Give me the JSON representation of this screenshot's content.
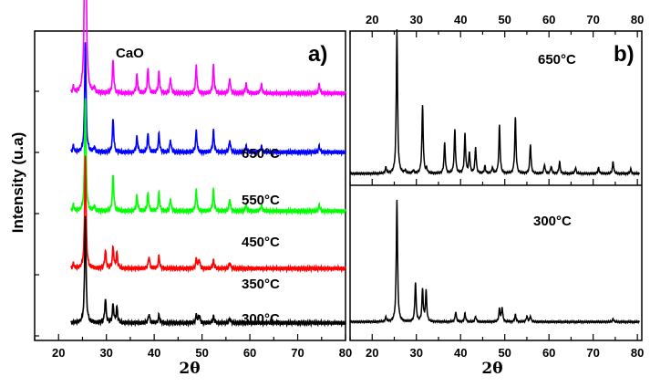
{
  "chart_data": [
    {
      "panel_label": "a)",
      "type": "line",
      "title": "CaO",
      "xlabel": "2θ",
      "ylabel": "Intensity (u.a)",
      "xlim": [
        15,
        80
      ],
      "x_ticks": [
        20,
        30,
        40,
        50,
        60,
        70,
        80
      ],
      "y_ticks_labeled": false,
      "grid": false,
      "legend": "labels placed above each curve on the right",
      "series": [
        {
          "name": "650°C",
          "color": "#ff00ff",
          "baseline": 0.8,
          "peaks": [
            [
              23.1,
              0.02
            ],
            [
              25.6,
              1.0
            ],
            [
              27.5,
              0.015
            ],
            [
              31.4,
              0.11
            ],
            [
              36.4,
              0.06
            ],
            [
              38.7,
              0.08
            ],
            [
              41.0,
              0.07
            ],
            [
              43.4,
              0.05
            ],
            [
              48.8,
              0.09
            ],
            [
              52.4,
              0.09
            ],
            [
              55.8,
              0.05
            ],
            [
              59.2,
              0.03
            ],
            [
              62.4,
              0.03
            ],
            [
              74.5,
              0.03
            ]
          ]
        },
        {
          "name": "550°C",
          "color": "#0000ff",
          "baseline": 0.605,
          "peaks": [
            [
              23.1,
              0.02
            ],
            [
              25.6,
              0.37
            ],
            [
              27.5,
              0.015
            ],
            [
              31.4,
              0.11
            ],
            [
              36.4,
              0.05
            ],
            [
              38.7,
              0.06
            ],
            [
              41.0,
              0.06
            ],
            [
              43.4,
              0.04
            ],
            [
              48.8,
              0.07
            ],
            [
              52.4,
              0.07
            ],
            [
              55.8,
              0.04
            ],
            [
              59.2,
              0.02
            ],
            [
              62.4,
              0.02
            ],
            [
              74.5,
              0.02
            ]
          ]
        },
        {
          "name": "450°C",
          "color": "#00ff00",
          "baseline": 0.41,
          "peaks": [
            [
              23.1,
              0.02
            ],
            [
              25.6,
              0.38
            ],
            [
              27.5,
              0.015
            ],
            [
              31.4,
              0.12
            ],
            [
              36.4,
              0.05
            ],
            [
              38.7,
              0.06
            ],
            [
              41.0,
              0.06
            ],
            [
              43.4,
              0.04
            ],
            [
              48.8,
              0.07
            ],
            [
              52.4,
              0.07
            ],
            [
              55.8,
              0.04
            ],
            [
              59.2,
              0.02
            ],
            [
              62.4,
              0.02
            ],
            [
              74.5,
              0.02
            ]
          ]
        },
        {
          "name": "350°C",
          "color": "#ff0000",
          "baseline": 0.22,
          "peaks": [
            [
              23.1,
              0.015
            ],
            [
              25.6,
              0.38
            ],
            [
              29.8,
              0.06
            ],
            [
              31.4,
              0.07
            ],
            [
              32.2,
              0.05
            ],
            [
              38.9,
              0.04
            ],
            [
              41.0,
              0.04
            ],
            [
              48.8,
              0.03
            ],
            [
              49.4,
              0.03
            ],
            [
              52.4,
              0.025
            ],
            [
              55.8,
              0.02
            ]
          ]
        },
        {
          "name": "300°C",
          "color": "#000000",
          "baseline": 0.04,
          "peaks": [
            [
              25.6,
              0.36
            ],
            [
              29.8,
              0.08
            ],
            [
              31.4,
              0.06
            ],
            [
              32.2,
              0.05
            ],
            [
              38.9,
              0.03
            ],
            [
              41.0,
              0.025
            ],
            [
              48.8,
              0.025
            ],
            [
              49.4,
              0.025
            ],
            [
              52.4,
              0.02
            ],
            [
              55.8,
              0.015
            ]
          ]
        }
      ]
    },
    {
      "panel_label": "b)",
      "type": "line",
      "title": "",
      "xlabel": "2θ",
      "ylabel": "",
      "xlim": [
        15,
        81
      ],
      "x_ticks": [
        20,
        30,
        40,
        50,
        60,
        70,
        80
      ],
      "y_ticks_labeled": false,
      "grid": false,
      "subplots": [
        {
          "label": "650°C",
          "color": "#000000",
          "baseline": 0.03,
          "peaks": [
            [
              23.1,
              0.04
            ],
            [
              25.6,
              1.0
            ],
            [
              27.5,
              0.02
            ],
            [
              29.3,
              0.02
            ],
            [
              31.4,
              0.47
            ],
            [
              32.3,
              0.03
            ],
            [
              36.4,
              0.21
            ],
            [
              38.7,
              0.3
            ],
            [
              41.0,
              0.27
            ],
            [
              42.0,
              0.14
            ],
            [
              43.4,
              0.18
            ],
            [
              45.5,
              0.05
            ],
            [
              47.2,
              0.04
            ],
            [
              48.8,
              0.33
            ],
            [
              52.4,
              0.38
            ],
            [
              55.8,
              0.2
            ],
            [
              59.0,
              0.06
            ],
            [
              60.5,
              0.05
            ],
            [
              62.4,
              0.08
            ],
            [
              66.0,
              0.04
            ],
            [
              71.2,
              0.04
            ],
            [
              74.5,
              0.08
            ],
            [
              78.5,
              0.03
            ]
          ]
        },
        {
          "label": "300°C",
          "color": "#000000",
          "baseline": 0.12,
          "peaks": [
            [
              23.1,
              0.03
            ],
            [
              25.6,
              0.88
            ],
            [
              29.8,
              0.28
            ],
            [
              31.4,
              0.23
            ],
            [
              32.2,
              0.22
            ],
            [
              38.9,
              0.07
            ],
            [
              41.0,
              0.06
            ],
            [
              43.4,
              0.04
            ],
            [
              48.8,
              0.09
            ],
            [
              49.4,
              0.1
            ],
            [
              52.4,
              0.05
            ],
            [
              55.0,
              0.04
            ],
            [
              55.8,
              0.04
            ],
            [
              74.5,
              0.02
            ]
          ]
        }
      ]
    }
  ]
}
